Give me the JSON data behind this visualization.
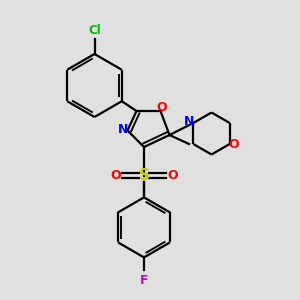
{
  "background_color": "#e0e0e0",
  "bond_color": "#000000",
  "atom_colors": {
    "Cl": "#00bb00",
    "O": "#ff0000",
    "N": "#0000ee",
    "S": "#cccc00",
    "F": "#cc00cc"
  },
  "figsize": [
    3.0,
    3.0
  ],
  "dpi": 100
}
